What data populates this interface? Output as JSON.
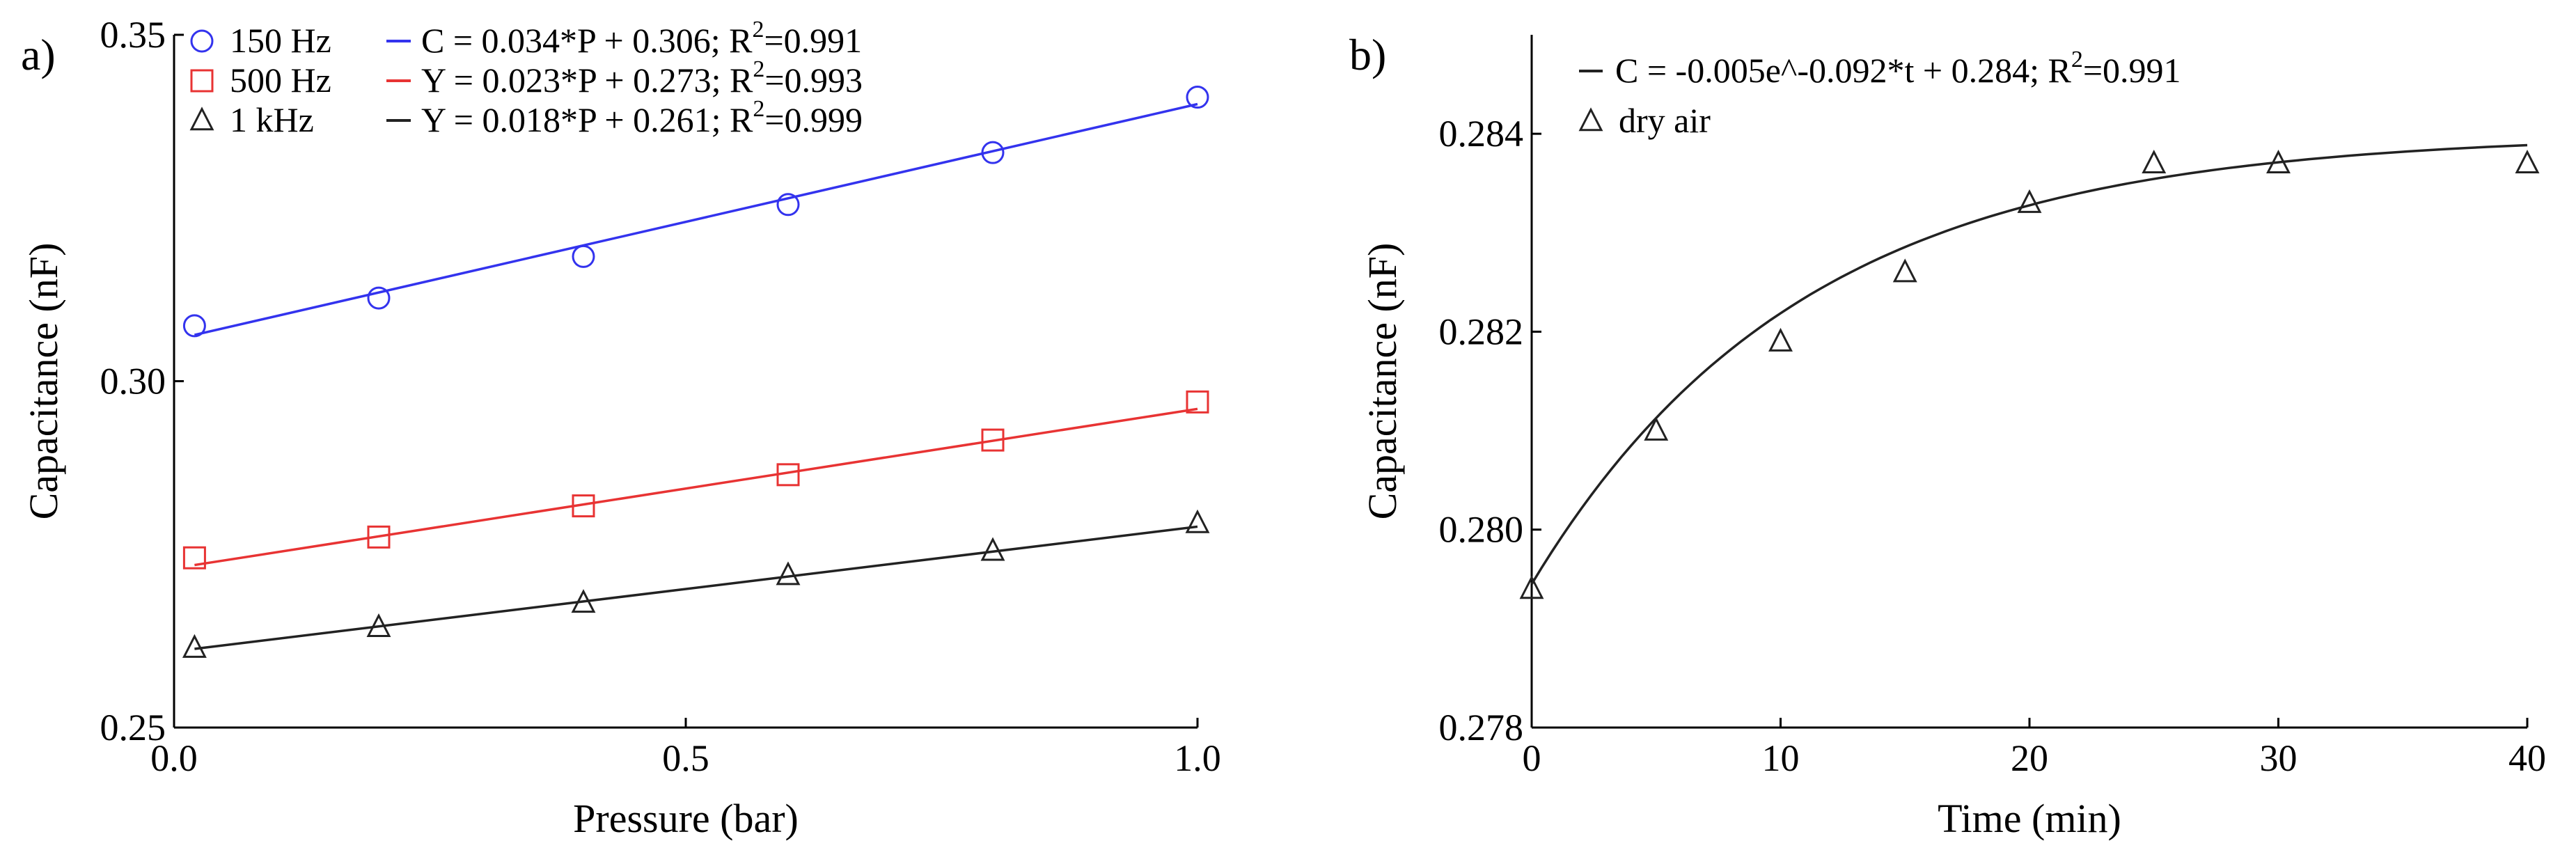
{
  "chart_data": [
    {
      "type": "scatter",
      "panel_label": "a)",
      "title": "",
      "xlabel": "Pressure (bar)",
      "ylabel": "Capacitance (nF)",
      "xlim": [
        0.0,
        1.0
      ],
      "ylim": [
        0.25,
        0.35
      ],
      "xticks": [
        0.0,
        0.5,
        1.0
      ],
      "xtick_labels": [
        "0.0",
        "0.5",
        "1.0"
      ],
      "yticks": [
        0.25,
        0.3,
        0.35
      ],
      "ytick_labels": [
        "0.25",
        "0.30",
        "0.35"
      ],
      "grid": false,
      "legend_placement": "top-left",
      "series": [
        {
          "name": "150  Hz",
          "color": "#3333ee",
          "marker": "circle",
          "x": [
            0.02,
            0.2,
            0.4,
            0.6,
            0.8,
            1.0
          ],
          "values": [
            0.308,
            0.312,
            0.318,
            0.3255,
            0.333,
            0.341
          ],
          "fit_label": "C = 0.034*P + 0.306; R",
          "fit_r2": "=0.991",
          "fit": {
            "slope": 0.034,
            "intercept": 0.306
          }
        },
        {
          "name": "500 Hz",
          "color": "#e83333",
          "marker": "square",
          "x": [
            0.02,
            0.2,
            0.4,
            0.6,
            0.8,
            1.0
          ],
          "values": [
            0.2745,
            0.2775,
            0.282,
            0.2865,
            0.2915,
            0.297
          ],
          "fit_label": "Y = 0.023*P + 0.273; R",
          "fit_r2": "=0.993",
          "fit": {
            "slope": 0.023,
            "intercept": 0.273
          }
        },
        {
          "name": "1 kHz",
          "color": "#222222",
          "marker": "triangle",
          "x": [
            0.02,
            0.2,
            0.4,
            0.6,
            0.8,
            1.0
          ],
          "values": [
            0.2615,
            0.2645,
            0.268,
            0.272,
            0.2755,
            0.2795
          ],
          "fit_label": "Y = 0.018*P + 0.261; R",
          "fit_r2": "=0.999",
          "fit": {
            "slope": 0.018,
            "intercept": 0.261
          }
        }
      ]
    },
    {
      "type": "scatter",
      "panel_label": "b)",
      "title": "",
      "xlabel": "Time (min)",
      "ylabel": "Capacitance (nF)",
      "xlim": [
        0,
        40
      ],
      "ylim": [
        0.278,
        0.285
      ],
      "xticks": [
        0,
        10,
        20,
        30,
        40
      ],
      "xtick_labels": [
        "0",
        "10",
        "20",
        "30",
        "40"
      ],
      "yticks": [
        0.278,
        0.28,
        0.282,
        0.284
      ],
      "ytick_labels": [
        "0.278",
        "0.280",
        "0.282",
        "0.284"
      ],
      "grid": false,
      "legend_placement": "top-left",
      "series": [
        {
          "name": "dry air",
          "color": "#222222",
          "marker": "triangle",
          "x": [
            0,
            5,
            10,
            15,
            20,
            25,
            30,
            40
          ],
          "values": [
            0.2794,
            0.281,
            0.2819,
            0.2826,
            0.2833,
            0.2837,
            0.2837,
            0.2837
          ],
          "fit_label": "C = -0.005e^-0.092*t + 0.284; R",
          "fit_r2": "=0.991",
          "fit": {
            "type": "exp",
            "a": -0.005,
            "k": -0.092,
            "c": 0.284,
            "display_a": -0.00455
          }
        }
      ]
    }
  ]
}
